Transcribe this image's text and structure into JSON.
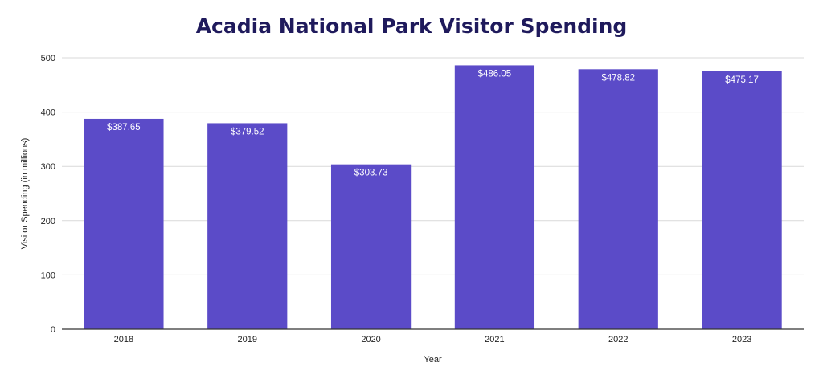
{
  "chart_data": {
    "type": "bar",
    "title": "Acadia National Park Visitor Spending",
    "xlabel": "Year",
    "ylabel": "Visitor Spending (in millions)",
    "categories": [
      "2018",
      "2019",
      "2020",
      "2021",
      "2022",
      "2023"
    ],
    "values": [
      387.65,
      379.52,
      303.73,
      486.05,
      478.82,
      475.17
    ],
    "data_labels": [
      "$387.65",
      "$379.52",
      "$303.73",
      "$486.05",
      "$478.82",
      "$475.17"
    ],
    "ylim": [
      0,
      500
    ],
    "yticks": [
      0,
      100,
      200,
      300,
      400,
      500
    ],
    "grid": true,
    "legend": "none",
    "colors": {
      "bar": "#5b4bc8",
      "title": "#1f1a5c",
      "grid": "#d9d9d9",
      "axis": "#333333"
    }
  }
}
